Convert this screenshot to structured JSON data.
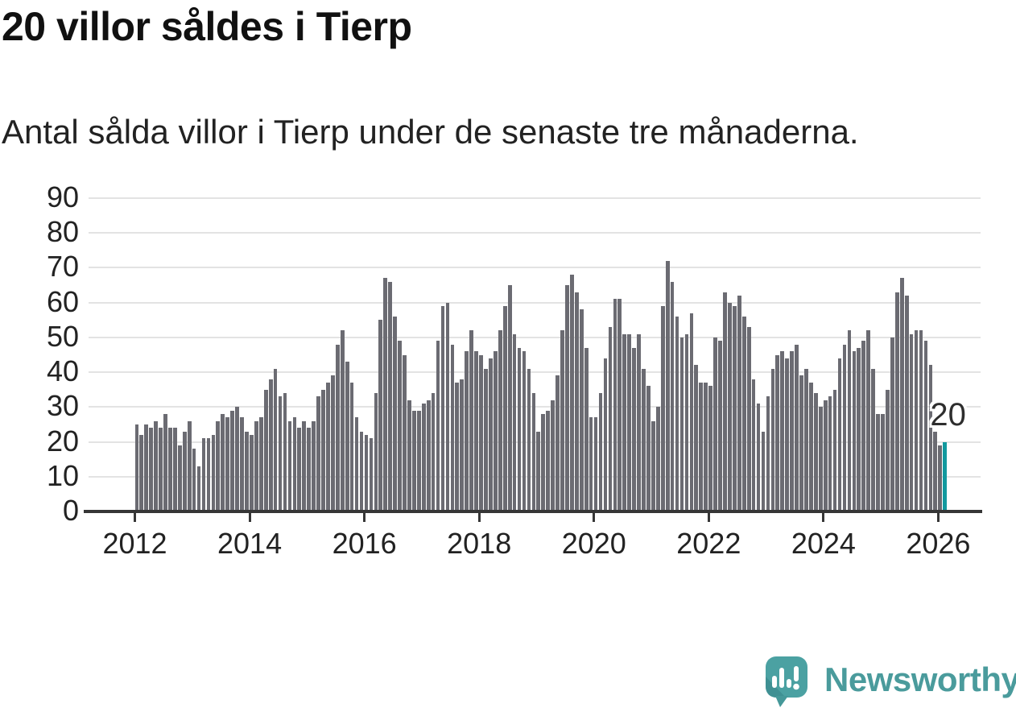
{
  "header": {
    "title": "20 villor såldes i Tierp",
    "subtitle": "Antal sålda villor i Tierp under de senaste tre månaderna."
  },
  "chart_data": {
    "type": "bar",
    "title": "20 villor såldes i Tierp",
    "subtitle": "Antal sålda villor i Tierp under de senaste tre månaderna.",
    "unit": "sålda villor (rullande tre månader)",
    "x_start": "2012-01",
    "frequency": "monthly",
    "values": [
      25,
      22,
      25,
      24,
      26,
      24,
      28,
      24,
      24,
      19,
      23,
      26,
      18,
      13,
      21,
      21,
      22,
      26,
      28,
      27,
      29,
      30,
      27,
      23,
      22,
      26,
      27,
      35,
      38,
      41,
      33,
      34,
      26,
      27,
      24,
      26,
      24,
      26,
      33,
      35,
      37,
      39,
      48,
      52,
      43,
      37,
      27,
      23,
      22,
      21,
      34,
      55,
      67,
      66,
      56,
      49,
      45,
      32,
      29,
      29,
      31,
      32,
      34,
      49,
      59,
      60,
      48,
      37,
      38,
      46,
      52,
      46,
      45,
      41,
      44,
      46,
      52,
      59,
      65,
      51,
      47,
      46,
      41,
      34,
      23,
      28,
      29,
      32,
      39,
      52,
      65,
      68,
      63,
      58,
      47,
      27,
      27,
      34,
      44,
      53,
      61,
      61,
      51,
      51,
      47,
      51,
      41,
      36,
      26,
      30,
      59,
      72,
      66,
      56,
      50,
      51,
      57,
      42,
      37,
      37,
      36,
      50,
      49,
      63,
      60,
      59,
      62,
      56,
      53,
      38,
      31,
      23,
      33,
      41,
      45,
      46,
      44,
      46,
      48,
      39,
      41,
      37,
      34,
      30,
      32,
      33,
      35,
      44,
      48,
      52,
      46,
      47,
      49,
      52,
      41,
      28,
      28,
      35,
      50,
      63,
      67,
      62,
      51,
      52,
      52,
      49,
      42,
      23,
      19,
      20
    ],
    "highlight": {
      "index": 169,
      "value": 20,
      "label": "20",
      "color": "#12999e"
    },
    "bar_color": "#6b6b72",
    "ylim": [
      0,
      90
    ],
    "yticks": [
      0,
      10,
      20,
      30,
      40,
      50,
      60,
      70,
      80,
      90
    ],
    "xticks": [
      2012,
      2014,
      2016,
      2018,
      2020,
      2022,
      2024,
      2026
    ],
    "grid": "horizontal",
    "legend": "none"
  },
  "colors": {
    "accent_teal": "#12999e",
    "bar_gray": "#6b6b72",
    "grid": "#e3e3e3",
    "axis": "#363636",
    "text": "#222222",
    "brand_teal": "#4a9b9c",
    "brand_bubble": "#4ba1a2"
  },
  "footer": {
    "brand": "Newsworthy"
  }
}
